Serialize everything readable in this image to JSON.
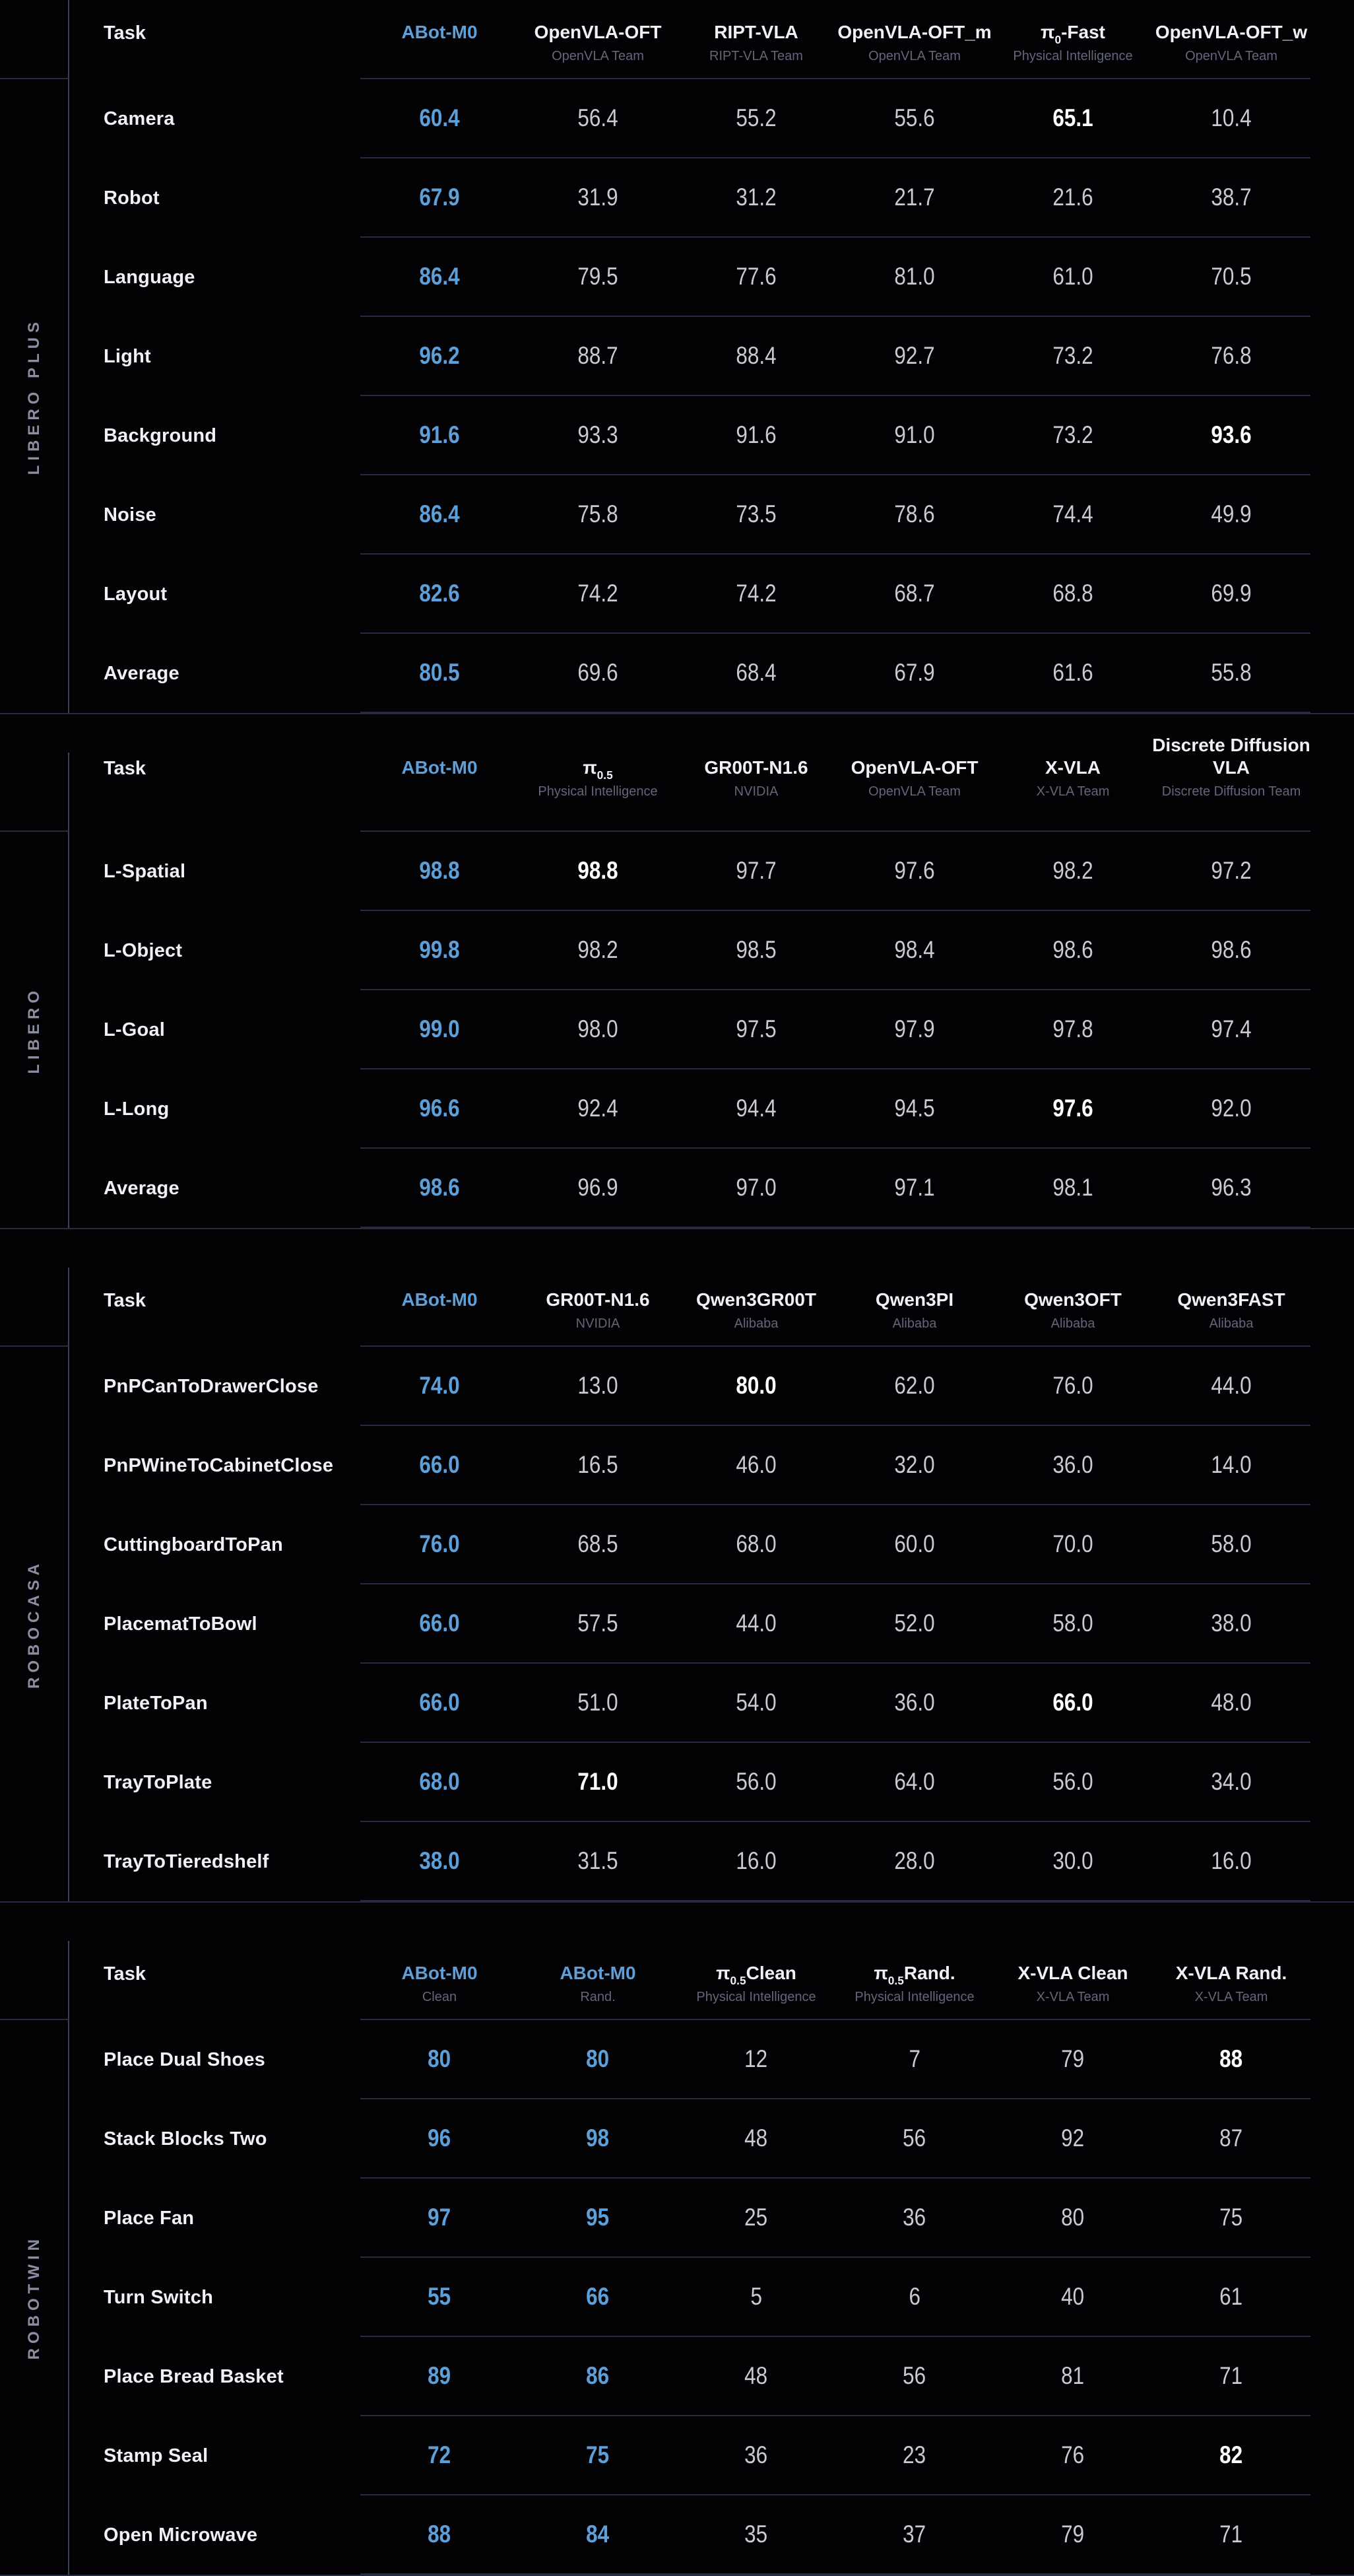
{
  "colors": {
    "accent": "#5C9FD9",
    "background": "#020204",
    "best": "#FFFFFF"
  },
  "chart_data": [
    {
      "type": "table",
      "group": "LIBERO PLUS",
      "task_header": "Task",
      "tall_head": false,
      "accent_cols": [
        0
      ],
      "columns": [
        {
          "pre": "ABot-M0",
          "sub": "",
          "post": "",
          "subtitle": "",
          "accent": true
        },
        {
          "pre": "OpenVLA-OFT",
          "sub": "",
          "post": "",
          "subtitle": "OpenVLA Team",
          "accent": false
        },
        {
          "pre": "RIPT-VLA",
          "sub": "",
          "post": "",
          "subtitle": "RIPT-VLA Team",
          "accent": false
        },
        {
          "pre": "OpenVLA-OFT_m",
          "sub": "",
          "post": "",
          "subtitle": "OpenVLA Team",
          "accent": false
        },
        {
          "pre": "π",
          "sub": "0",
          "post": "-Fast",
          "subtitle": "Physical Intelligence",
          "accent": false
        },
        {
          "pre": "OpenVLA-OFT_w",
          "sub": "",
          "post": "",
          "subtitle": "OpenVLA Team",
          "accent": false
        }
      ],
      "rows": [
        {
          "task": "Camera",
          "values": [
            "60.4",
            "56.4",
            "55.2",
            "55.6",
            "65.1",
            "10.4"
          ],
          "best": 4
        },
        {
          "task": "Robot",
          "values": [
            "67.9",
            "31.9",
            "31.2",
            "21.7",
            "21.6",
            "38.7"
          ],
          "best": -1
        },
        {
          "task": "Language",
          "values": [
            "86.4",
            "79.5",
            "77.6",
            "81.0",
            "61.0",
            "70.5"
          ],
          "best": -1
        },
        {
          "task": "Light",
          "values": [
            "96.2",
            "88.7",
            "88.4",
            "92.7",
            "73.2",
            "76.8"
          ],
          "best": -1
        },
        {
          "task": "Background",
          "values": [
            "91.6",
            "93.3",
            "91.6",
            "91.0",
            "73.2",
            "93.6"
          ],
          "best": 5
        },
        {
          "task": "Noise",
          "values": [
            "86.4",
            "75.8",
            "73.5",
            "78.6",
            "74.4",
            "49.9"
          ],
          "best": -1
        },
        {
          "task": "Layout",
          "values": [
            "82.6",
            "74.2",
            "74.2",
            "68.7",
            "68.8",
            "69.9"
          ],
          "best": -1
        },
        {
          "task": "Average",
          "values": [
            "80.5",
            "69.6",
            "68.4",
            "67.9",
            "61.6",
            "55.8"
          ],
          "best": -1
        }
      ]
    },
    {
      "type": "table",
      "group": "LIBERO",
      "task_header": "Task",
      "tall_head": true,
      "accent_cols": [
        0
      ],
      "columns": [
        {
          "pre": "ABot-M0",
          "sub": "",
          "post": "",
          "subtitle": "",
          "accent": true
        },
        {
          "pre": "π",
          "sub": "0.5",
          "post": "",
          "subtitle": "Physical Intelligence",
          "accent": false
        },
        {
          "pre": "GR00T-N1.6",
          "sub": "",
          "post": "",
          "subtitle": "NVIDIA",
          "accent": false
        },
        {
          "pre": "OpenVLA-OFT",
          "sub": "",
          "post": "",
          "subtitle": "OpenVLA Team",
          "accent": false
        },
        {
          "pre": "X-VLA",
          "sub": "",
          "post": "",
          "subtitle": "X-VLA Team",
          "accent": false
        },
        {
          "pre": "Discrete Diffusion VLA",
          "sub": "",
          "post": "",
          "subtitle": "Discrete Diffusion Team",
          "accent": false
        }
      ],
      "rows": [
        {
          "task": "L-Spatial",
          "values": [
            "98.8",
            "98.8",
            "97.7",
            "97.6",
            "98.2",
            "97.2"
          ],
          "best": 1
        },
        {
          "task": "L-Object",
          "values": [
            "99.8",
            "98.2",
            "98.5",
            "98.4",
            "98.6",
            "98.6"
          ],
          "best": -1
        },
        {
          "task": "L-Goal",
          "values": [
            "99.0",
            "98.0",
            "97.5",
            "97.9",
            "97.8",
            "97.4"
          ],
          "best": -1
        },
        {
          "task": "L-Long",
          "values": [
            "96.6",
            "92.4",
            "94.4",
            "94.5",
            "97.6",
            "92.0"
          ],
          "best": 4
        },
        {
          "task": "Average",
          "values": [
            "98.6",
            "96.9",
            "97.0",
            "97.1",
            "98.1",
            "96.3"
          ],
          "best": -1
        }
      ]
    },
    {
      "type": "table",
      "group": "ROBOCASA",
      "task_header": "Task",
      "tall_head": false,
      "accent_cols": [
        0
      ],
      "columns": [
        {
          "pre": "ABot-M0",
          "sub": "",
          "post": "",
          "subtitle": "",
          "accent": true
        },
        {
          "pre": "GR00T-N1.6",
          "sub": "",
          "post": "",
          "subtitle": "NVIDIA",
          "accent": false
        },
        {
          "pre": "Qwen3GR00T",
          "sub": "",
          "post": "",
          "subtitle": "Alibaba",
          "accent": false
        },
        {
          "pre": "Qwen3PI",
          "sub": "",
          "post": "",
          "subtitle": "Alibaba",
          "accent": false
        },
        {
          "pre": "Qwen3OFT",
          "sub": "",
          "post": "",
          "subtitle": "Alibaba",
          "accent": false
        },
        {
          "pre": "Qwen3FAST",
          "sub": "",
          "post": "",
          "subtitle": "Alibaba",
          "accent": false
        }
      ],
      "rows": [
        {
          "task": "PnPCanToDrawerClose",
          "values": [
            "74.0",
            "13.0",
            "80.0",
            "62.0",
            "76.0",
            "44.0"
          ],
          "best": 2
        },
        {
          "task": "PnPWineToCabinetClose",
          "values": [
            "66.0",
            "16.5",
            "46.0",
            "32.0",
            "36.0",
            "14.0"
          ],
          "best": -1
        },
        {
          "task": "CuttingboardToPan",
          "values": [
            "76.0",
            "68.5",
            "68.0",
            "60.0",
            "70.0",
            "58.0"
          ],
          "best": -1
        },
        {
          "task": "PlacematToBowl",
          "values": [
            "66.0",
            "57.5",
            "44.0",
            "52.0",
            "58.0",
            "38.0"
          ],
          "best": -1
        },
        {
          "task": "PlateToPan",
          "values": [
            "66.0",
            "51.0",
            "54.0",
            "36.0",
            "66.0",
            "48.0"
          ],
          "best": 4
        },
        {
          "task": "TrayToPlate",
          "values": [
            "68.0",
            "71.0",
            "56.0",
            "64.0",
            "56.0",
            "34.0"
          ],
          "best": 1
        },
        {
          "task": "TrayToTieredshelf",
          "values": [
            "38.0",
            "31.5",
            "16.0",
            "28.0",
            "30.0",
            "16.0"
          ],
          "best": -1
        }
      ]
    },
    {
      "type": "table",
      "group": "ROBOTWIN",
      "task_header": "Task",
      "tall_head": false,
      "accent_cols": [
        0,
        1
      ],
      "columns": [
        {
          "pre": "ABot-M0",
          "sub": "",
          "post": "",
          "subtitle": "Clean",
          "accent": true
        },
        {
          "pre": "ABot-M0",
          "sub": "",
          "post": "",
          "subtitle": "Rand.",
          "accent": true
        },
        {
          "pre": "π",
          "sub": "0.5",
          "post": " Clean",
          "subtitle": "Physical Intelligence",
          "accent": false
        },
        {
          "pre": "π",
          "sub": "0.5",
          "post": " Rand.",
          "subtitle": "Physical Intelligence",
          "accent": false
        },
        {
          "pre": "X-VLA Clean",
          "sub": "",
          "post": "",
          "subtitle": "X-VLA Team",
          "accent": false
        },
        {
          "pre": "X-VLA Rand.",
          "sub": "",
          "post": "",
          "subtitle": "X-VLA Team",
          "accent": false
        }
      ],
      "rows": [
        {
          "task": "Place Dual Shoes",
          "values": [
            "80",
            "80",
            "12",
            "7",
            "79",
            "88"
          ],
          "best": 5
        },
        {
          "task": "Stack Blocks Two",
          "values": [
            "96",
            "98",
            "48",
            "56",
            "92",
            "87"
          ],
          "best": -1
        },
        {
          "task": "Place Fan",
          "values": [
            "97",
            "95",
            "25",
            "36",
            "80",
            "75"
          ],
          "best": -1
        },
        {
          "task": "Turn Switch",
          "values": [
            "55",
            "66",
            "5",
            "6",
            "40",
            "61"
          ],
          "best": -1
        },
        {
          "task": "Place Bread Basket",
          "values": [
            "89",
            "86",
            "48",
            "56",
            "81",
            "71"
          ],
          "best": -1
        },
        {
          "task": "Stamp Seal",
          "values": [
            "72",
            "75",
            "36",
            "23",
            "76",
            "82"
          ],
          "best": 5
        },
        {
          "task": "Open Microwave",
          "values": [
            "88",
            "84",
            "35",
            "37",
            "79",
            "71"
          ],
          "best": -1
        }
      ]
    }
  ]
}
